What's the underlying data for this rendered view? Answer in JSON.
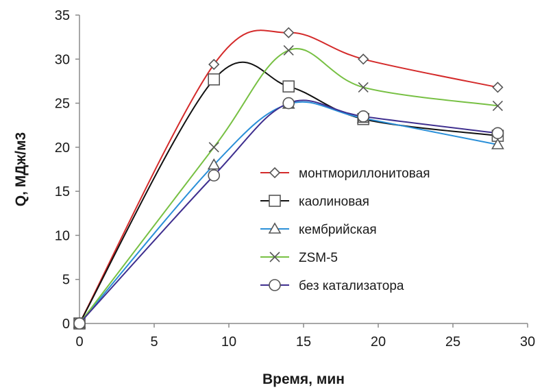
{
  "chart_data": {
    "type": "line",
    "title": "",
    "xlabel": "Время, мин",
    "ylabel": "Q, МДж/м3",
    "xlim": [
      0,
      30
    ],
    "ylim": [
      0,
      35
    ],
    "xticks": [
      0,
      5,
      10,
      15,
      20,
      25,
      30
    ],
    "yticks": [
      0,
      5,
      10,
      15,
      20,
      25,
      30,
      35
    ],
    "grid": false,
    "legend_position": "center-right",
    "series": [
      {
        "name": "монтмориллонитовая",
        "color": "#d42a2a",
        "marker": "diamond",
        "x": [
          0,
          9,
          14,
          19,
          28
        ],
        "y": [
          0,
          29.4,
          33.0,
          30.0,
          26.8
        ]
      },
      {
        "name": "каолиновая",
        "color": "#111111",
        "marker": "square",
        "x": [
          0,
          9,
          14,
          19,
          28
        ],
        "y": [
          0,
          27.7,
          26.9,
          23.2,
          21.3
        ]
      },
      {
        "name": "кембрийская",
        "color": "#2a8fd8",
        "marker": "triangle",
        "x": [
          0,
          9,
          14,
          19,
          28
        ],
        "y": [
          0,
          18.0,
          24.9,
          23.3,
          20.3
        ]
      },
      {
        "name": "ZSM-5",
        "color": "#77c043",
        "marker": "x",
        "x": [
          0,
          9,
          14,
          19,
          28
        ],
        "y": [
          0,
          20.0,
          31.0,
          26.8,
          24.7
        ]
      },
      {
        "name": "без катализатора",
        "color": "#3f2f8f",
        "marker": "circle",
        "x": [
          0,
          9,
          14,
          19,
          28
        ],
        "y": [
          0,
          16.8,
          25.0,
          23.5,
          21.6
        ]
      }
    ]
  }
}
